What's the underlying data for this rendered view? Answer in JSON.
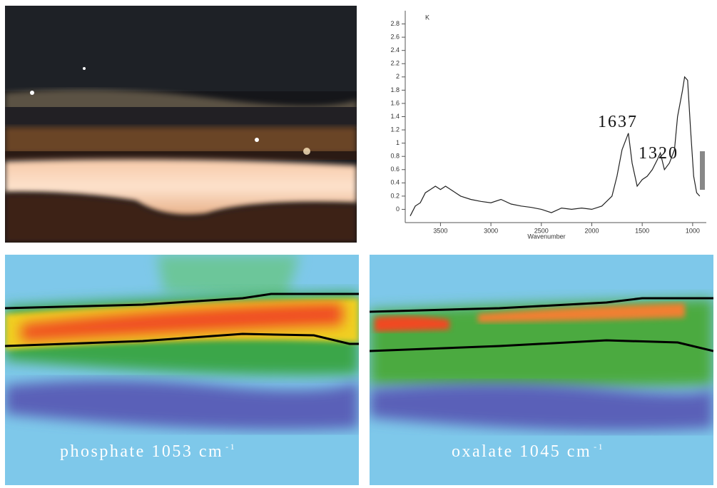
{
  "chart_data": {
    "type": "line",
    "y_label": "K",
    "x_label": "Wavenumber",
    "annotations": [
      "1637",
      "1320"
    ],
    "color": "#222",
    "x": [
      3800,
      3750,
      3700,
      3650,
      3600,
      3550,
      3500,
      3450,
      3400,
      3350,
      3300,
      3200,
      3100,
      3000,
      2900,
      2800,
      2700,
      2600,
      2500,
      2400,
      2300,
      2200,
      2100,
      2000,
      1900,
      1800,
      1750,
      1700,
      1637,
      1600,
      1550,
      1500,
      1450,
      1400,
      1350,
      1320,
      1280,
      1230,
      1180,
      1150,
      1100,
      1080,
      1050,
      1020,
      990,
      960,
      930
    ],
    "values": [
      -0.1,
      0.05,
      0.1,
      0.25,
      0.3,
      0.35,
      0.3,
      0.35,
      0.3,
      0.25,
      0.2,
      0.15,
      0.12,
      0.1,
      0.15,
      0.08,
      0.05,
      0.03,
      0.0,
      -0.05,
      0.02,
      0.0,
      0.02,
      0.0,
      0.05,
      0.2,
      0.5,
      0.9,
      1.15,
      0.7,
      0.35,
      0.45,
      0.5,
      0.6,
      0.75,
      0.85,
      0.6,
      0.7,
      0.9,
      1.4,
      1.8,
      2.0,
      1.95,
      1.2,
      0.5,
      0.25,
      0.2
    ],
    "xlim": [
      3800,
      900
    ],
    "ylim": [
      -0.2,
      3.0
    ],
    "xticks": [
      3500,
      3000,
      2500,
      2000,
      1500,
      1000
    ],
    "yticks": [
      0.0,
      0.2,
      0.4,
      0.6,
      0.8,
      1.0,
      1.2,
      1.4,
      1.6,
      1.8,
      2.0,
      2.2,
      2.4,
      2.6,
      2.8
    ]
  },
  "maps": [
    {
      "label": "phosphate 1053 cm",
      "superscript": "-1"
    },
    {
      "label": "oxalate 1045 cm",
      "superscript": "-1"
    }
  ]
}
